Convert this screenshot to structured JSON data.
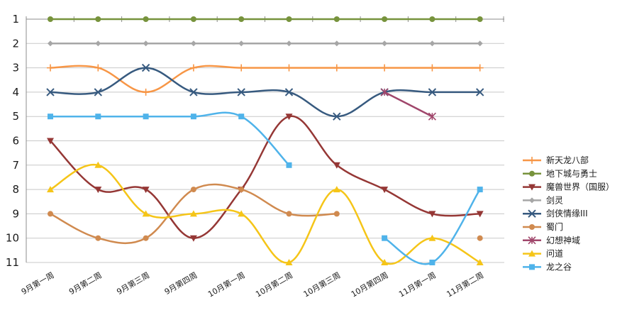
{
  "chart_data": {
    "type": "line",
    "title": "",
    "xlabel": "",
    "ylabel": "",
    "categories": [
      "9月第一周",
      "9月第二周",
      "9月第三周",
      "9月第四周",
      "10月第一周",
      "10月第二周",
      "10月第三周",
      "10月第四周",
      "11月第一周",
      "11月第二周"
    ],
    "y_axis": {
      "min": 1,
      "max": 11,
      "reversed": true,
      "ticks": [
        1,
        2,
        3,
        4,
        5,
        6,
        7,
        8,
        9,
        10,
        11
      ]
    },
    "grid": true,
    "legend_position": "right",
    "smooth": true,
    "series": [
      {
        "name": "新天龙八部",
        "color": "#F79646",
        "marker": "plus",
        "values": [
          3,
          3,
          4,
          3,
          3,
          3,
          3,
          3,
          3,
          3
        ]
      },
      {
        "name": "地下城与勇士",
        "color": "#77933C",
        "marker": "circle",
        "values": [
          1,
          1,
          1,
          1,
          1,
          1,
          1,
          1,
          1,
          1
        ]
      },
      {
        "name": "魔兽世界（国服）",
        "color": "#953735",
        "marker": "triangle-down",
        "values": [
          6,
          8,
          8,
          10,
          8,
          5,
          7,
          8,
          9,
          9
        ]
      },
      {
        "name": "剑灵",
        "color": "#A6A6A6",
        "marker": "diamond",
        "values": [
          2,
          2,
          2,
          2,
          2,
          2,
          2,
          2,
          2,
          2
        ]
      },
      {
        "name": "剑侠情缘III",
        "color": "#375A7F",
        "marker": "x",
        "values": [
          4,
          4,
          3,
          4,
          4,
          4,
          5,
          4,
          4,
          4
        ]
      },
      {
        "name": "蜀门",
        "color": "#D08A4F",
        "marker": "circle",
        "values": [
          9,
          10,
          10,
          8,
          8,
          9,
          9,
          null,
          null,
          10
        ]
      },
      {
        "name": "幻想神域",
        "color": "#A0466B",
        "marker": "star",
        "values": [
          null,
          null,
          null,
          null,
          null,
          null,
          null,
          4,
          5,
          null
        ]
      },
      {
        "name": "问道",
        "color": "#F5C518",
        "marker": "triangle-up",
        "values": [
          8,
          7,
          9,
          9,
          9,
          11,
          8,
          11,
          10,
          11
        ]
      },
      {
        "name": "龙之谷",
        "color": "#4FB3EA",
        "marker": "square",
        "values": [
          5,
          5,
          5,
          5,
          5,
          7,
          null,
          10,
          11,
          8
        ]
      }
    ]
  }
}
